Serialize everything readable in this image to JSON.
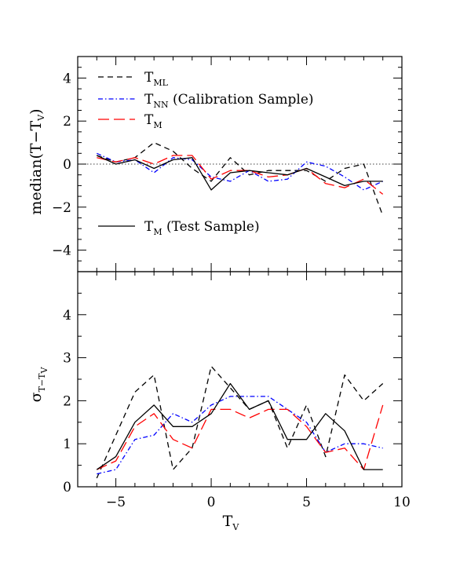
{
  "chart_data": [
    {
      "type": "line",
      "panel": "top",
      "ylabel": "median(T−T",
      "ylabel_sub": "V",
      "ylabel_close": ")",
      "xlim": [
        -7,
        10
      ],
      "ylim": [
        -5,
        5
      ],
      "yticks": [
        -4,
        -2,
        0,
        2,
        4
      ],
      "yticklabels": [
        "−4",
        "−2",
        "0",
        "2",
        "4"
      ],
      "reference_line": {
        "y": 0,
        "style": "dotted"
      },
      "x": [
        -6,
        -5,
        -4,
        -3,
        -2,
        -1,
        0,
        1,
        2,
        3,
        4,
        5,
        6,
        7,
        8,
        9
      ],
      "series": [
        {
          "legend": "T",
          "legend_sub": "ML",
          "color": "#000000",
          "dash": "dashed",
          "values": [
            0.4,
            0.1,
            0.3,
            1.0,
            0.6,
            -0.2,
            -0.8,
            0.3,
            -0.5,
            -0.3,
            -0.3,
            -0.3,
            -0.8,
            -0.2,
            0.0,
            -2.4
          ]
        },
        {
          "legend": "T",
          "legend_sub": "NN",
          "legend_suffix": " (Calibration Sample)",
          "color": "#0000ff",
          "dash": "dashdot",
          "values": [
            0.5,
            0.1,
            0.2,
            -0.4,
            0.3,
            0.2,
            -0.6,
            -0.8,
            -0.3,
            -0.8,
            -0.7,
            0.1,
            -0.1,
            -0.6,
            -1.2,
            -0.8
          ]
        },
        {
          "legend": "T",
          "legend_sub": "M",
          "color": "#ff0000",
          "dash": "longdash",
          "values": [
            0.3,
            0.1,
            0.3,
            0.0,
            0.4,
            0.4,
            -0.7,
            -0.3,
            -0.3,
            -0.6,
            -0.5,
            -0.2,
            -0.9,
            -1.1,
            -0.7,
            -1.4
          ]
        },
        {
          "legend": "T",
          "legend_sub": "M",
          "legend_suffix": "  (Test Sample)",
          "color": "#000000",
          "dash": "solid",
          "values": [
            0.4,
            0.0,
            0.2,
            -0.2,
            0.2,
            0.3,
            -1.2,
            -0.4,
            -0.3,
            -0.4,
            -0.5,
            -0.2,
            -0.6,
            -1.0,
            -0.8,
            -0.8
          ]
        }
      ]
    },
    {
      "type": "line",
      "panel": "bottom",
      "ylabel": "σ",
      "ylabel_sub": "T−T",
      "ylabel_subsub": "V",
      "xlabel": "T",
      "xlabel_sub": "V",
      "xlim": [
        -7,
        10
      ],
      "ylim": [
        0,
        5
      ],
      "xticks": [
        -5,
        0,
        5,
        10
      ],
      "xticklabels": [
        "−5",
        "0",
        "5",
        "10"
      ],
      "yticks": [
        0,
        1,
        2,
        3,
        4
      ],
      "yticklabels": [
        "0",
        "1",
        "2",
        "3",
        "4"
      ],
      "x": [
        -6,
        -5,
        -4,
        -3,
        -2,
        -1,
        0,
        1,
        2,
        3,
        4,
        5,
        6,
        7,
        8,
        9
      ],
      "series": [
        {
          "legend": "T_ML",
          "color": "#000000",
          "dash": "dashed",
          "values": [
            0.2,
            1.2,
            2.2,
            2.6,
            0.4,
            0.9,
            2.8,
            2.3,
            1.8,
            2.0,
            0.9,
            1.9,
            0.7,
            2.6,
            2.0,
            2.4
          ]
        },
        {
          "legend": "T_NN",
          "color": "#0000ff",
          "dash": "dashdot",
          "values": [
            0.3,
            0.4,
            1.1,
            1.2,
            1.7,
            1.5,
            1.9,
            2.1,
            2.1,
            2.1,
            1.8,
            1.5,
            0.8,
            1.0,
            1.0,
            0.9
          ]
        },
        {
          "legend": "T_M",
          "color": "#ff0000",
          "dash": "longdash",
          "values": [
            0.4,
            0.6,
            1.4,
            1.7,
            1.1,
            0.9,
            1.8,
            1.8,
            1.6,
            1.8,
            1.8,
            1.4,
            0.8,
            0.9,
            0.4,
            1.9
          ]
        },
        {
          "legend": "T_M (Test)",
          "color": "#000000",
          "dash": "solid",
          "values": [
            0.4,
            0.7,
            1.5,
            1.9,
            1.4,
            1.4,
            1.7,
            2.4,
            1.8,
            2.0,
            1.1,
            1.1,
            1.7,
            1.3,
            0.4,
            0.4
          ]
        }
      ]
    }
  ]
}
